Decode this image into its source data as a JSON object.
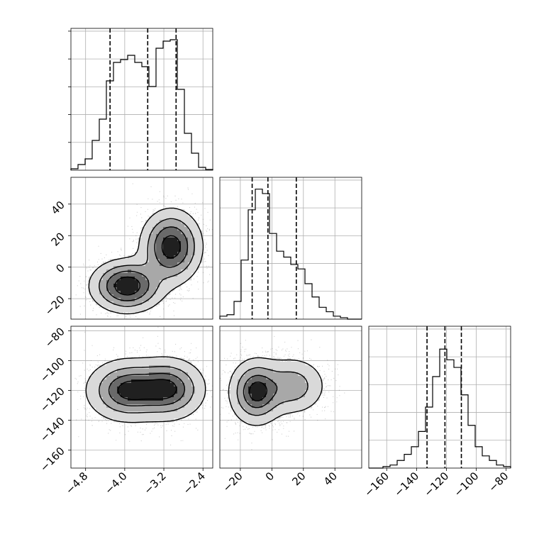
{
  "chart_data": {
    "type": "corner",
    "title": "",
    "grid": true,
    "parameters": [
      {
        "range": [
          -5.1,
          -2.2
        ],
        "ticks": [
          -4.8,
          -4.0,
          -3.2,
          -2.4
        ],
        "tick_labels": [
          "−4.8",
          "−4.0",
          "−3.2",
          "−2.4"
        ]
      },
      {
        "range": [
          -33,
          57
        ],
        "ticks": [
          -20,
          0,
          20,
          40
        ],
        "tick_labels": [
          "−20",
          "0",
          "20",
          "40"
        ]
      },
      {
        "range": [
          -172,
          -77
        ],
        "ticks": [
          -160,
          -140,
          -120,
          -100,
          -80
        ],
        "tick_labels": [
          "−160",
          "−140",
          "−120",
          "−100",
          "−80"
        ]
      }
    ],
    "histograms": [
      {
        "param": 0,
        "bin_edges": [
          -5.1,
          -4.955,
          -4.81,
          -4.665,
          -4.52,
          -4.375,
          -4.23,
          -4.085,
          -3.94,
          -3.795,
          -3.65,
          -3.505,
          -3.36,
          -3.215,
          -3.07,
          -2.925,
          -2.78,
          -2.635,
          -2.49,
          -2.345,
          -2.2
        ],
        "counts": [
          0.01,
          0.04,
          0.08,
          0.21,
          0.36,
          0.63,
          0.76,
          0.78,
          0.81,
          0.76,
          0.73,
          0.59,
          0.86,
          0.91,
          0.92,
          0.57,
          0.26,
          0.12,
          0.02,
          0.005
        ],
        "ylim": [
          0,
          1.0
        ],
        "quantiles": [
          -4.3,
          -3.53,
          -2.95
        ]
      },
      {
        "param": 1,
        "bin_edges": [
          -33,
          -28.5,
          -24,
          -19.5,
          -15,
          -10.5,
          -6,
          -1.5,
          3,
          7.5,
          12,
          16.5,
          21,
          25.5,
          30,
          34.5,
          39,
          43.5,
          48,
          52.5,
          57
        ],
        "counts": [
          0.02,
          0.03,
          0.12,
          0.4,
          0.74,
          0.88,
          0.85,
          0.58,
          0.46,
          0.42,
          0.37,
          0.34,
          0.24,
          0.15,
          0.08,
          0.05,
          0.02,
          0.01,
          0.0,
          0.0
        ],
        "ylim": [
          0,
          0.96
        ],
        "quantiles": [
          -12.5,
          -2.5,
          15.5
        ]
      },
      {
        "param": 2,
        "bin_edges": [
          -172,
          -167.25,
          -162.5,
          -157.75,
          -153,
          -148.25,
          -143.5,
          -138.75,
          -134,
          -129.25,
          -124.5,
          -119.75,
          -115,
          -110.25,
          -105.5,
          -100.75,
          -96,
          -91.25,
          -86.5,
          -81.75,
          -77
        ],
        "counts": [
          0.0,
          0.0,
          0.01,
          0.02,
          0.05,
          0.09,
          0.14,
          0.24,
          0.4,
          0.6,
          0.78,
          0.71,
          0.66,
          0.48,
          0.28,
          0.14,
          0.08,
          0.05,
          0.02,
          0.01
        ],
        "ylim": [
          0,
          0.93
        ],
        "quantiles": [
          -133,
          -121,
          -110
        ]
      }
    ],
    "joint": [
      {
        "params": [
          0,
          1
        ],
        "modes": [
          {
            "cx": -3.95,
            "cy": -12,
            "sx": 0.38,
            "sy": 8.5,
            "weight": 1.0
          },
          {
            "cx": -3.05,
            "cy": 13,
            "sx": 0.32,
            "sy": 12,
            "weight": 0.95
          }
        ],
        "levels": [
          0.12,
          0.32,
          0.55,
          0.8
        ]
      },
      {
        "params": [
          0,
          2
        ],
        "modes": [
          {
            "cx": -3.95,
            "cy": -120,
            "sx": 0.42,
            "sy": 10.5,
            "weight": 1.0
          },
          {
            "cx": -3.1,
            "cy": -119,
            "sx": 0.38,
            "sy": 10.5,
            "weight": 0.95
          }
        ],
        "levels": [
          0.12,
          0.35,
          0.6,
          0.82
        ]
      },
      {
        "params": [
          1,
          2
        ],
        "modes": [
          {
            "cx": -10,
            "cy": -121,
            "sx": 8.5,
            "sy": 11,
            "weight": 1.0
          },
          {
            "cx": 13,
            "cy": -117,
            "sx": 11,
            "sy": 10,
            "weight": 0.55
          }
        ],
        "levels": [
          0.12,
          0.35,
          0.62,
          0.85
        ]
      }
    ]
  }
}
